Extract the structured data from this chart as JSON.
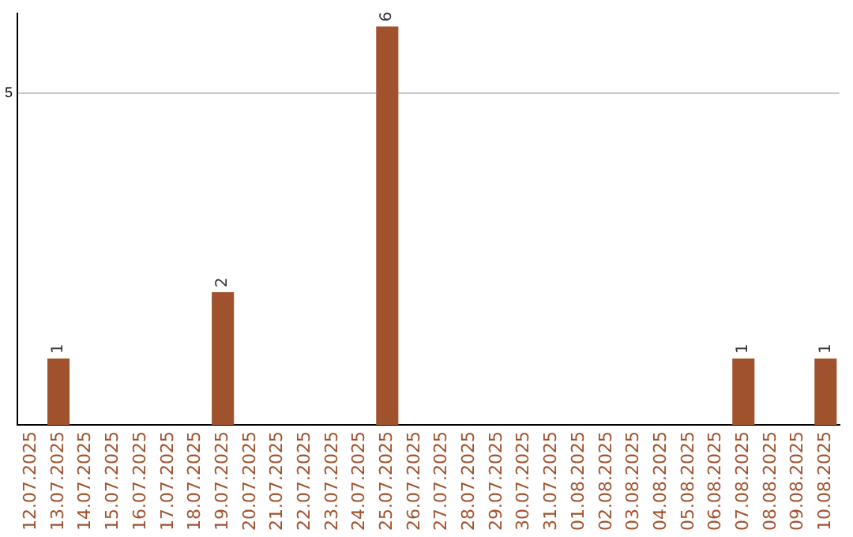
{
  "chart_data": {
    "type": "bar",
    "categories": [
      "12.07.2025",
      "13.07.2025",
      "14.07.2025",
      "15.07.2025",
      "16.07.2025",
      "17.07.2025",
      "18.07.2025",
      "19.07.2025",
      "20.07.2025",
      "21.07.2025",
      "22.07.2025",
      "23.07.2025",
      "24.07.2025",
      "25.07.2025",
      "26.07.2025",
      "27.07.2025",
      "28.07.2025",
      "29.07.2025",
      "30.07.2025",
      "31.07.2025",
      "01.08.2025",
      "02.08.2025",
      "03.08.2025",
      "04.08.2025",
      "05.08.2025",
      "06.08.2025",
      "07.08.2025",
      "08.08.2025",
      "09.08.2025",
      "10.08.2025"
    ],
    "values": [
      0,
      1,
      0,
      0,
      0,
      0,
      0,
      2,
      0,
      0,
      0,
      0,
      0,
      6,
      0,
      0,
      0,
      0,
      0,
      0,
      0,
      0,
      0,
      0,
      0,
      0,
      1,
      0,
      0,
      1
    ],
    "value_labels": [
      null,
      "1",
      null,
      null,
      null,
      null,
      null,
      "2",
      null,
      null,
      null,
      null,
      null,
      "6",
      null,
      null,
      null,
      null,
      null,
      null,
      null,
      null,
      null,
      null,
      null,
      null,
      "1",
      null,
      null,
      "1"
    ],
    "color": "#a0522d",
    "ylim": [
      0,
      6.2
    ],
    "yticks": [
      5
    ],
    "grid": "y",
    "legend": false
  }
}
